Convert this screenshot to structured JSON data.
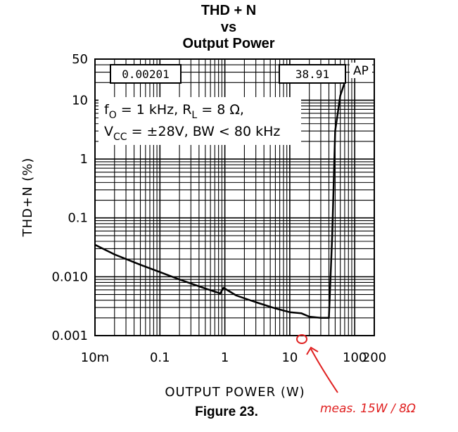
{
  "chart_data": {
    "type": "line",
    "title": [
      "THD + N",
      "vs",
      "Output Power"
    ],
    "xlabel": "OUTPUT POWER (W)",
    "ylabel": "THD+N (%)",
    "x_scale": "log",
    "y_scale": "log",
    "xlim": [
      0.01,
      200
    ],
    "ylim": [
      0.001,
      50
    ],
    "x_ticks": [
      {
        "value": 0.01,
        "label": "10m"
      },
      {
        "value": 0.1,
        "label": "0.1"
      },
      {
        "value": 1,
        "label": "1"
      },
      {
        "value": 10,
        "label": "10"
      },
      {
        "value": 100,
        "label": "100"
      },
      {
        "value": 200,
        "label": "200"
      }
    ],
    "y_ticks": [
      {
        "value": 50,
        "label": "50"
      },
      {
        "value": 10,
        "label": "10"
      },
      {
        "value": 1,
        "label": "1"
      },
      {
        "value": 0.1,
        "label": "0.1"
      },
      {
        "value": 0.01,
        "label": "0.010"
      },
      {
        "value": 0.001,
        "label": "0.001"
      }
    ],
    "grid": true,
    "series": [
      {
        "x": [
          0.01,
          0.02,
          0.05,
          0.1,
          0.2,
          0.5,
          0.85,
          0.95,
          1.5,
          3,
          6,
          10,
          15,
          20,
          30,
          40,
          45,
          50,
          60,
          70
        ],
        "y": [
          0.035,
          0.024,
          0.016,
          0.012,
          0.009,
          0.0063,
          0.0052,
          0.0065,
          0.0048,
          0.0037,
          0.0029,
          0.0025,
          0.0024,
          0.0021,
          0.002,
          0.002,
          0.05,
          3.0,
          12.0,
          20.0
        ]
      }
    ],
    "annotations": {
      "box_left": "0.00201",
      "box_right": "38.91",
      "ap_label": "AP",
      "condition_line1_f": "f",
      "condition_line1_sub_o": "O",
      "condition_line1_mid": " = 1 kHz, R",
      "condition_line1_sub_l": "L",
      "condition_line1_end": " = 8 Ω,",
      "condition_line2_v": "V",
      "condition_line2_sub_cc": "CC",
      "condition_line2_end": " = ±28V, BW < 80 kHz"
    }
  },
  "caption": "Figure 23.",
  "handwritten_note": "meas. 15W / 8Ω",
  "colors": {
    "line": "#000000",
    "annotation": "#e02020"
  }
}
